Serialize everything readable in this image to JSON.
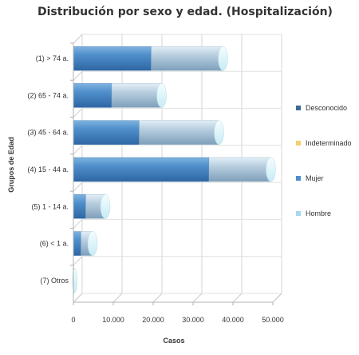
{
  "chart_data": {
    "type": "bar",
    "orientation": "horizontal",
    "stacked": true,
    "three_d": true,
    "title": "Distribución por sexo y edad. (Hospitalización)",
    "xlabel": "Casos",
    "ylabel": "Grupos de Edad",
    "categories": [
      "(1) > 74 a.",
      "(2) 65 - 74 a.",
      "(3) 45 - 64 a.",
      "(4) 15 - 44 a.",
      "(5) 1 - 14 a.",
      "(6) < 1 a.",
      "(7) Otros"
    ],
    "xlim": [
      0,
      50000
    ],
    "xticks": [
      "0",
      "10.000",
      "20.000",
      "30.000",
      "40.000",
      "50.000"
    ],
    "grid": true,
    "legend_position": "right",
    "series": [
      {
        "name": "Desconocido",
        "color": "#3f6a91",
        "values": [
          0,
          0,
          0,
          0,
          0,
          0,
          0
        ]
      },
      {
        "name": "Indeterminado",
        "color": "#f5cf6b",
        "values": [
          0,
          0,
          0,
          0,
          0,
          0,
          0
        ]
      },
      {
        "name": "Mujer",
        "color": "#4a8ed0",
        "values": [
          19500,
          9600,
          16500,
          34000,
          3100,
          1900,
          150
        ]
      },
      {
        "name": "Hombre",
        "color": "#a9d6ef",
        "values": [
          18000,
          12500,
          20000,
          15500,
          4900,
          2900,
          200
        ]
      }
    ]
  }
}
